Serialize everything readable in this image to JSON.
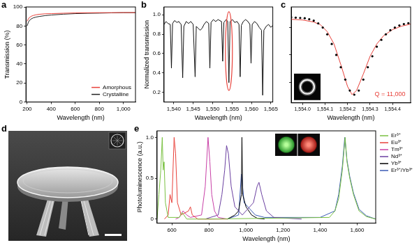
{
  "chart_data": [
    {
      "panel": "a",
      "type": "line",
      "x_label": "Wavelength (nm)",
      "y_label": "Transmission (%)",
      "xlim": [
        190,
        1100
      ],
      "xticks": [
        200,
        400,
        600,
        800,
        {
          "value": 1000,
          "label": "1,000"
        }
      ],
      "ylim": [
        0,
        100
      ],
      "yticks": [
        0,
        20,
        40,
        60,
        80,
        100
      ],
      "grid": false,
      "legend": "lower right",
      "series": [
        {
          "name": "Amorphous",
          "color": "#e8413a",
          "line_style": "solid",
          "x": [
            200,
            210,
            220,
            235,
            250,
            275,
            300,
            350,
            400,
            500,
            600,
            700,
            800,
            900,
            1000,
            1100
          ],
          "values": [
            85,
            87.5,
            89,
            90.3,
            91,
            91.8,
            92.3,
            92.8,
            93,
            93.4,
            93.7,
            93.9,
            94,
            94,
            94.1,
            94.1
          ]
        },
        {
          "name": "Crystalline",
          "color": "#222222",
          "line_style": "solid",
          "x": [
            200,
            210,
            220,
            235,
            250,
            275,
            300,
            350,
            400,
            500,
            600,
            700,
            800,
            900,
            1000,
            1100
          ],
          "values": [
            80,
            84,
            86,
            87.5,
            88.5,
            89.4,
            90,
            90.9,
            91.5,
            92.4,
            93,
            93.3,
            93.5,
            93.8,
            94,
            94
          ]
        }
      ]
    },
    {
      "panel": "b",
      "type": "line",
      "x_label": "Wavelength (nm)",
      "y_label": "Normalized transmission",
      "xlim": [
        1537.5,
        1565.5
      ],
      "xticks": [
        {
          "value": 1540,
          "label": "1,540"
        },
        {
          "value": 1545,
          "label": "1,545"
        },
        {
          "value": 1550,
          "label": "1,550"
        },
        {
          "value": 1555,
          "label": "1,555"
        },
        {
          "value": 1560,
          "label": "1,560"
        },
        {
          "value": 1565,
          "label": "1,565"
        }
      ],
      "ylim": [
        0.1,
        1.08
      ],
      "yticks": [
        0.2,
        0.4,
        0.6,
        0.8,
        {
          "value": 1,
          "label": "1.0"
        }
      ],
      "grid": false,
      "highlight": {
        "x": [
          1553.3,
          1555.1
        ],
        "y": [
          0.22,
          1.03
        ]
      },
      "series": [
        {
          "color": "#111111",
          "line_style": "solid",
          "x": [
            1537.5,
            1538.0,
            1538.5,
            1539.1,
            1539.4,
            1539.7,
            1540.2,
            1540.8,
            1541.3,
            1541.9,
            1542.3,
            1542.6,
            1543.2,
            1543.8,
            1544.4,
            1545.0,
            1545.5,
            1545.8,
            1546.3,
            1546.8,
            1547.3,
            1547.8,
            1548.4,
            1549.0,
            1549.3,
            1549.6,
            1550.2,
            1550.8,
            1551.4,
            1552.3,
            1552.6,
            1552.9,
            1553.5,
            1553.9,
            1554.2,
            1554.5,
            1555.1,
            1555.7,
            1556.3,
            1556.8,
            1557.1,
            1557.4,
            1557.9,
            1558.5,
            1559.1,
            1559.6,
            1559.9,
            1560.2,
            1560.8,
            1561.4,
            1562.0,
            1562.6,
            1562.9,
            1563.2,
            1563.8,
            1564.4,
            1565.0,
            1565.5
          ],
          "values": [
            0.9,
            0.93,
            0.91,
            0.9,
            0.45,
            0.91,
            0.94,
            0.92,
            0.93,
            0.9,
            0.35,
            0.88,
            0.93,
            0.91,
            0.93,
            0.9,
            0.36,
            0.88,
            0.86,
            0.84,
            0.86,
            0.9,
            0.93,
            0.91,
            0.45,
            0.92,
            0.95,
            0.93,
            0.95,
            0.93,
            0.52,
            0.92,
            0.95,
            0.93,
            0.3,
            0.93,
            0.95,
            0.92,
            0.93,
            0.9,
            0.36,
            0.89,
            0.93,
            0.95,
            0.93,
            0.9,
            0.5,
            0.9,
            0.93,
            0.91,
            0.87,
            0.84,
            0.17,
            0.84,
            0.88,
            0.9,
            0.87,
            0.89
          ]
        }
      ]
    },
    {
      "panel": "c",
      "type": "line",
      "x_label": "Wavelength (nm)",
      "xlim": [
        1553.95,
        1554.48
      ],
      "xticks": [
        {
          "value": 1554.0,
          "label": "1,554.0"
        },
        {
          "value": 1554.1,
          "label": "1,554.1"
        },
        {
          "value": 1554.2,
          "label": "1,554.2"
        },
        {
          "value": 1554.3,
          "label": "1,554.3"
        },
        {
          "value": 1554.4,
          "label": "1,554.4"
        }
      ],
      "ylim": [
        0.25,
        0.95
      ],
      "yticks": [
        0.4,
        0.6,
        0.8
      ],
      "grid": false,
      "tick_labels": "x",
      "annotations": [
        {
          "text": "Q = 11,000",
          "x": 1554.32,
          "y": 0.31
        }
      ],
      "series": [
        {
          "color": "#000000",
          "marker": "circle",
          "line_style": "none",
          "x": [
            1553.95,
            1553.97,
            1553.99,
            1554.01,
            1554.03,
            1554.05,
            1554.07,
            1554.09,
            1554.11,
            1554.13,
            1554.15,
            1554.17,
            1554.19,
            1554.21,
            1554.23,
            1554.25,
            1554.27,
            1554.29,
            1554.31,
            1554.33,
            1554.35,
            1554.37,
            1554.39,
            1554.41,
            1554.43,
            1554.45,
            1554.47
          ],
          "values": [
            0.875,
            0.872,
            0.87,
            0.868,
            0.86,
            0.85,
            0.83,
            0.8,
            0.75,
            0.68,
            0.6,
            0.51,
            0.42,
            0.34,
            0.31,
            0.34,
            0.42,
            0.51,
            0.59,
            0.66,
            0.71,
            0.75,
            0.78,
            0.8,
            0.815,
            0.825,
            0.832
          ]
        },
        {
          "color": "#e8413a",
          "line_style": "solid",
          "x": [
            1553.95,
            1554.0,
            1554.05,
            1554.08,
            1554.11,
            1554.14,
            1554.17,
            1554.2,
            1554.22,
            1554.24,
            1554.27,
            1554.3,
            1554.33,
            1554.36,
            1554.4,
            1554.44,
            1554.48
          ],
          "values": [
            0.86,
            0.855,
            0.84,
            0.82,
            0.77,
            0.68,
            0.53,
            0.37,
            0.31,
            0.34,
            0.46,
            0.59,
            0.68,
            0.74,
            0.785,
            0.81,
            0.825
          ]
        }
      ]
    },
    {
      "panel": "d",
      "type": "image"
    },
    {
      "panel": "e",
      "type": "line",
      "x_label": "Wavelength (nm)",
      "y_label": "Photoluminescence (a.u.)",
      "xlim": [
        520,
        1700
      ],
      "xticks": [
        600,
        800,
        {
          "value": 1000,
          "label": "1,000"
        },
        {
          "value": 1200,
          "label": "1,200"
        },
        {
          "value": 1400,
          "label": "1,400"
        },
        {
          "value": 1600,
          "label": "1,600"
        }
      ],
      "ylim": [
        -0.05,
        1.08
      ],
      "yticks": [
        0,
        0.5,
        {
          "value": 1,
          "label": "1.0"
        }
      ],
      "grid": false,
      "legend": "upper right",
      "series": [
        {
          "name": "Er³⁺",
          "color": "#7ac142",
          "line_style": "solid",
          "x": [
            520,
            530,
            540,
            548,
            553,
            558,
            565,
            580,
            640,
            655,
            665,
            680,
            800,
            1450,
            1480,
            1500,
            1520,
            1535,
            1545,
            1560,
            1580,
            1610,
            1650,
            1700
          ],
          "values": [
            0,
            0.3,
            0.6,
            1.0,
            0.6,
            0.7,
            0.2,
            0.02,
            0.02,
            0.08,
            0.05,
            0,
            0,
            0.02,
            0.1,
            0.25,
            0.6,
            1.0,
            0.7,
            0.5,
            0.3,
            0.1,
            0.03,
            0
          ]
        },
        {
          "name": "Eu³⁺",
          "color": "#e8413a",
          "line_style": "solid",
          "x": [
            560,
            580,
            590,
            600,
            612,
            620,
            630,
            650,
            690,
            700,
            710,
            740,
            900
          ],
          "values": [
            0,
            0.05,
            0.3,
            0.2,
            1.0,
            0.8,
            0.2,
            0.05,
            0.1,
            0.15,
            0.05,
            0,
            0
          ]
        },
        {
          "name": "Tm³⁺",
          "color": "#c83fa6",
          "line_style": "solid",
          "x": [
            620,
            640,
            660,
            680,
            700,
            760,
            780,
            795,
            805,
            815,
            830,
            850,
            900
          ],
          "values": [
            0,
            0.02,
            0.1,
            0.05,
            0.02,
            0.05,
            0.4,
            1.0,
            0.7,
            0.3,
            0.1,
            0.02,
            0
          ]
        },
        {
          "name": "Nd³⁺",
          "color": "#6a3fa0",
          "line_style": "solid",
          "x": [
            780,
            850,
            870,
            885,
            895,
            905,
            920,
            940,
            980,
            1040,
            1060,
            1070,
            1085,
            1110,
            1150,
            1300
          ],
          "values": [
            0,
            0.05,
            0.3,
            0.6,
            0.9,
            0.8,
            0.4,
            0.15,
            0.05,
            0.2,
            0.4,
            0.45,
            0.3,
            0.1,
            0.02,
            0
          ]
        },
        {
          "name": "Yb³⁺",
          "color": "#000000",
          "line_style": "solid",
          "x": [
            900,
            940,
            960,
            975,
            978,
            982,
            1000,
            1030,
            1060,
            1100
          ],
          "values": [
            0,
            0.05,
            0.1,
            0.3,
            1.0,
            0.3,
            0.15,
            0.05,
            0.01,
            0
          ]
        },
        {
          "name": "Er³⁺/Yb³⁺",
          "color": "#3b5bb5",
          "line_style": "solid",
          "x": [
            900,
            960,
            975,
            990,
            1050,
            1100,
            1400,
            1480,
            1500,
            1520,
            1533,
            1545,
            1560,
            1580,
            1610,
            1650,
            1700
          ],
          "values": [
            0,
            0.05,
            0.55,
            0.2,
            0.05,
            0.02,
            0.02,
            0.1,
            0.3,
            0.65,
            1.0,
            0.72,
            0.52,
            0.32,
            0.12,
            0.04,
            0
          ]
        }
      ]
    }
  ]
}
